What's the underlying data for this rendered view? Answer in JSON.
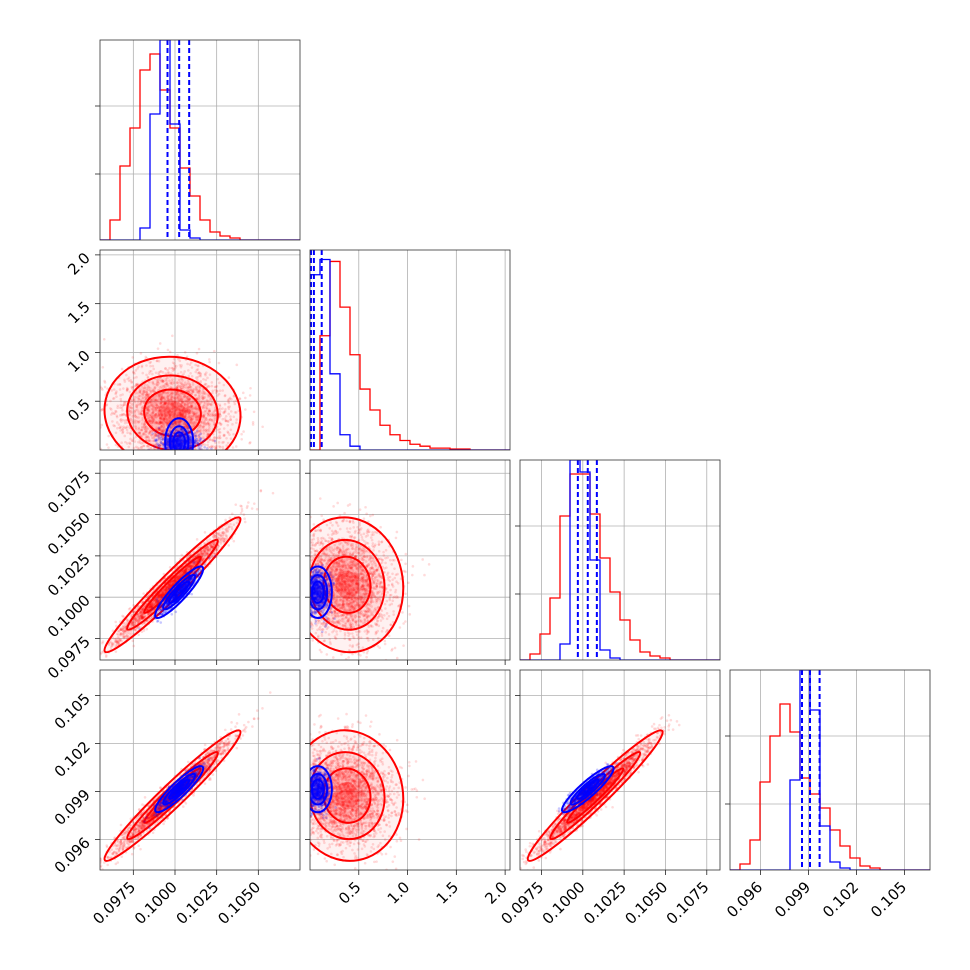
{
  "chart_data": {
    "type": "corner",
    "colors": {
      "a": "#ff0000",
      "b": "#0000ff"
    },
    "grid": true,
    "parameters": [
      {
        "range": [
          0.0955,
          0.1075
        ],
        "ticks": [
          {
            "v": 0.0975,
            "label": "0.0975"
          },
          {
            "v": 0.1,
            "label": "0.1000"
          },
          {
            "v": 0.1025,
            "label": "0.1025"
          },
          {
            "v": 0.105,
            "label": "0.1050"
          }
        ]
      },
      {
        "range": [
          0.0,
          2.05
        ],
        "ticks": [
          {
            "v": 0.5,
            "label": "0.5"
          },
          {
            "v": 1.0,
            "label": "1.0"
          },
          {
            "v": 1.5,
            "label": "1.5"
          },
          {
            "v": 2.0,
            "label": "2.0"
          }
        ]
      },
      {
        "range": [
          0.0962,
          0.1083
        ],
        "ticks": [
          {
            "v": 0.0975,
            "label": "0.0975"
          },
          {
            "v": 0.1,
            "label": "0.1000"
          },
          {
            "v": 0.1025,
            "label": "0.1025"
          },
          {
            "v": 0.105,
            "label": "0.1050"
          },
          {
            "v": 0.1075,
            "label": "0.1075"
          }
        ]
      },
      {
        "range": [
          0.0941,
          0.1066
        ],
        "ticks": [
          {
            "v": 0.096,
            "label": "0.096"
          },
          {
            "v": 0.099,
            "label": "0.099"
          },
          {
            "v": 0.102,
            "label": "0.102"
          },
          {
            "v": 0.105,
            "label": "0.105"
          }
        ]
      }
    ],
    "distributions": [
      {
        "color": "#ff0000",
        "mean": [
          0.09985,
          0.38,
          0.10075,
          0.09875
        ],
        "sd": [
          0.0017,
          0.24,
          0.0017,
          0.0017
        ],
        "rho": [
          [
            1,
            -0.05,
            0.97,
            0.97
          ],
          [
            -0.05,
            1,
            -0.05,
            -0.05
          ],
          [
            0.97,
            -0.05,
            1,
            0.97
          ],
          [
            0.97,
            -0.05,
            0.97,
            1
          ]
        ]
      },
      {
        "color": "#0000ff",
        "mean": [
          0.10025,
          0.08,
          0.1003,
          0.09915
        ],
        "sd": [
          0.0006,
          0.06,
          0.00065,
          0.0006
        ],
        "rho": [
          [
            1,
            0,
            0.9,
            0.9
          ],
          [
            0,
            1,
            0,
            0
          ],
          [
            0.9,
            0,
            1,
            0.9
          ],
          [
            0.9,
            0,
            0.9,
            1
          ]
        ]
      }
    ],
    "quantile_lines": [
      [
        0.09955,
        0.10025,
        0.10085
      ],
      [
        0.01,
        0.04,
        0.12
      ],
      [
        0.0997,
        0.1003,
        0.10085
      ],
      [
        0.0986,
        0.0991,
        0.0997
      ]
    ],
    "histograms": [
      {
        "range": [
          0.0955,
          0.1075
        ],
        "nbins": 20,
        "red": [
          0,
          0.1,
          0.37,
          0.56,
          0.85,
          0.93,
          0.75,
          0.56,
          0.36,
          0.22,
          0.1,
          0.04,
          0.02,
          0.01,
          0,
          0,
          0,
          0,
          0,
          0
        ],
        "blue": [
          0,
          0,
          0,
          0,
          0.06,
          0.63,
          1.0,
          0.58,
          0.05,
          0.01,
          0,
          0,
          0,
          0,
          0,
          0,
          0,
          0,
          0,
          0
        ],
        "ymax": 1.0,
        "ticks": [
          0.33,
          0.67
        ]
      },
      {
        "range": [
          0.0,
          2.05
        ],
        "nbins": 20,
        "red": [
          0,
          0.6,
          0.99,
          0.75,
          0.5,
          0.32,
          0.21,
          0.13,
          0.08,
          0.05,
          0.03,
          0.02,
          0.01,
          0.01,
          0.005,
          0.005,
          0,
          0,
          0,
          0
        ],
        "blue": [
          0.92,
          1.0,
          0.4,
          0.08,
          0.02,
          0,
          0,
          0,
          0,
          0,
          0,
          0,
          0,
          0,
          0,
          0,
          0,
          0,
          0,
          0
        ],
        "ymax": 1.05,
        "ticks": []
      },
      {
        "range": [
          0.0962,
          0.1083
        ],
        "nbins": 20,
        "red": [
          0,
          0.03,
          0.13,
          0.31,
          0.72,
          0.93,
          0.93,
          0.73,
          0.51,
          0.34,
          0.2,
          0.1,
          0.04,
          0.02,
          0.01,
          0,
          0,
          0,
          0,
          0
        ],
        "blue": [
          0,
          0,
          0,
          0,
          0.08,
          1.0,
          0.94,
          0.5,
          0.05,
          0.01,
          0,
          0,
          0,
          0,
          0,
          0,
          0,
          0,
          0,
          0
        ],
        "ymax": 1.0,
        "ticks": [
          0.33,
          0.67
        ]
      },
      {
        "range": [
          0.0941,
          0.1066
        ],
        "nbins": 20,
        "red": [
          0,
          0.03,
          0.15,
          0.44,
          0.67,
          0.83,
          0.69,
          0.46,
          0.38,
          0.31,
          0.2,
          0.12,
          0.06,
          0.02,
          0.01,
          0,
          0,
          0,
          0,
          0
        ],
        "blue": [
          0,
          0,
          0,
          0,
          0,
          0,
          0.45,
          1.0,
          0.8,
          0.22,
          0.04,
          0.01,
          0,
          0,
          0,
          0,
          0,
          0,
          0,
          0
        ],
        "ymax": 1.0,
        "ticks": [
          0.33,
          0.67
        ]
      }
    ]
  }
}
